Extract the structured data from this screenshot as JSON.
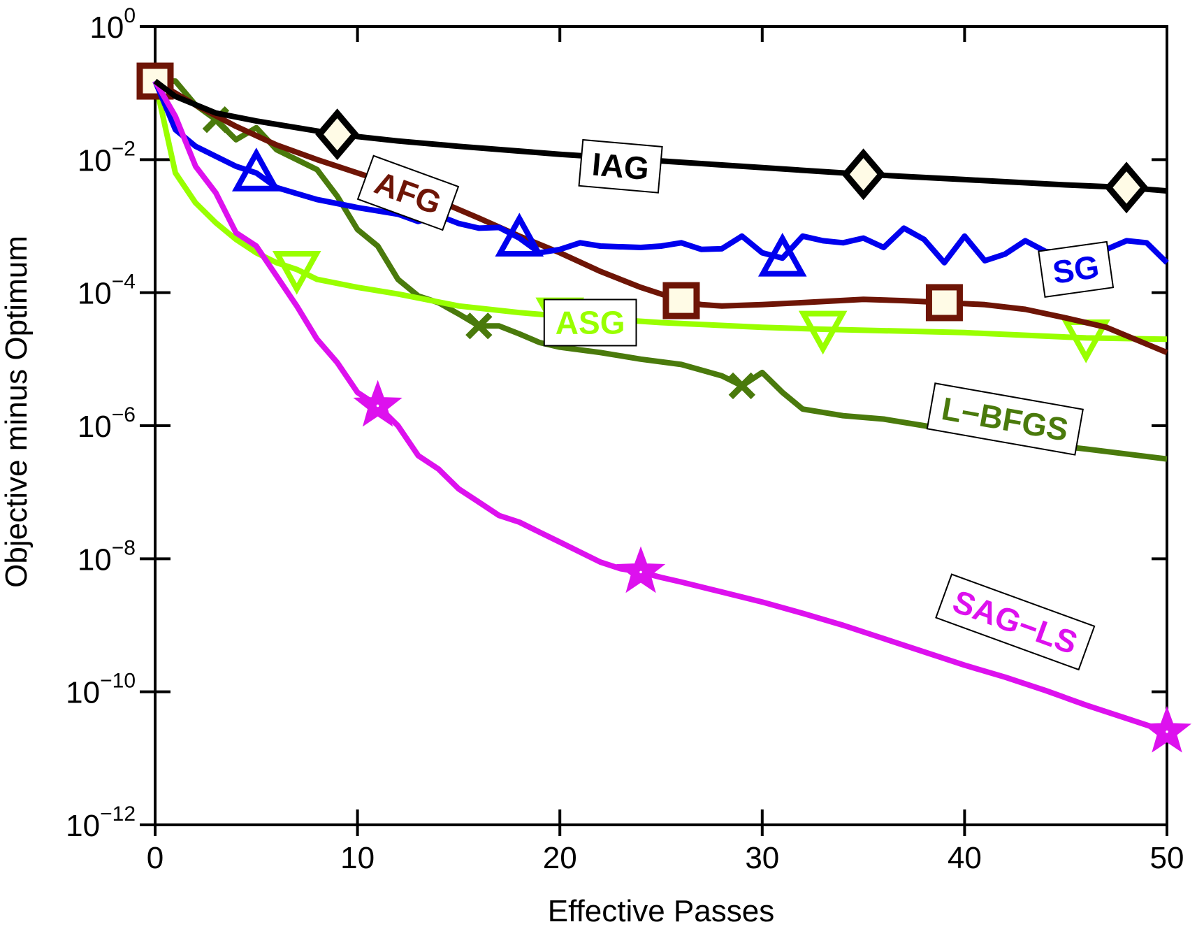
{
  "chart_data": {
    "type": "line",
    "title": "",
    "xlabel": "Effective Passes",
    "ylabel": "Objective minus Optimum",
    "xlim": [
      0,
      50
    ],
    "ylim_log10": [
      -12,
      0
    ],
    "y_scale": "log",
    "grid": false,
    "x_ticks": [
      0,
      10,
      20,
      30,
      40,
      50
    ],
    "x_tick_labels": [
      "0",
      "10",
      "20",
      "30",
      "40",
      "50"
    ],
    "y_ticks_log10": [
      0,
      -2,
      -4,
      -6,
      -8,
      -10,
      -12
    ],
    "y_tick_labels": [
      {
        "base": "10",
        "exp": "0"
      },
      {
        "base": "10",
        "exp": "−2"
      },
      {
        "base": "10",
        "exp": "−4"
      },
      {
        "base": "10",
        "exp": "−6"
      },
      {
        "base": "10",
        "exp": "−8"
      },
      {
        "base": "10",
        "exp": "−10"
      },
      {
        "base": "10",
        "exp": "−12"
      }
    ],
    "series": [
      {
        "name": "IAG",
        "color": "#000000",
        "marker": "diamond",
        "marker_x": [
          9,
          35,
          48
        ],
        "label_at": [
          23,
          -2.1
        ],
        "label_rotation": 5,
        "label_box": true,
        "x": [
          0,
          1,
          3,
          5,
          9,
          12,
          15,
          20,
          25,
          30,
          35,
          40,
          45,
          48,
          50
        ],
        "log_y": [
          -0.82,
          -1.05,
          -1.3,
          -1.42,
          -1.62,
          -1.72,
          -1.8,
          -1.92,
          -2.02,
          -2.12,
          -2.22,
          -2.3,
          -2.38,
          -2.42,
          -2.47
        ]
      },
      {
        "name": "SG",
        "color": "#0000ee",
        "marker": "triangle-up",
        "marker_x": [
          5,
          18,
          31
        ],
        "label_at": [
          45.5,
          -3.65
        ],
        "label_rotation": -8,
        "label_box": true,
        "x": [
          0,
          1,
          2,
          4,
          5,
          6,
          8,
          10,
          12,
          13,
          14,
          15,
          16,
          17,
          18,
          19,
          20,
          21,
          22,
          24,
          25,
          26,
          27,
          28,
          29,
          30,
          31,
          32,
          33,
          34,
          35,
          36,
          37,
          38,
          39,
          40,
          41,
          42,
          43,
          44,
          45,
          46,
          47,
          48,
          49,
          50
        ],
        "log_y": [
          -0.82,
          -1.55,
          -1.8,
          -2.1,
          -2.2,
          -2.42,
          -2.6,
          -2.72,
          -2.82,
          -2.93,
          -2.84,
          -2.96,
          -3.03,
          -3.02,
          -3.18,
          -3.4,
          -3.35,
          -3.25,
          -3.3,
          -3.32,
          -3.3,
          -3.25,
          -3.35,
          -3.34,
          -3.15,
          -3.4,
          -3.48,
          -3.15,
          -3.22,
          -3.25,
          -3.18,
          -3.32,
          -3.03,
          -3.2,
          -3.55,
          -3.15,
          -3.52,
          -3.42,
          -3.22,
          -3.38,
          -3.4,
          -3.42,
          -3.35,
          -3.22,
          -3.25,
          -3.55
        ]
      },
      {
        "name": "AFG",
        "color": "#6e1506",
        "marker": "square",
        "marker_x": [
          0,
          26,
          39
        ],
        "label_at": [
          12.5,
          -2.5
        ],
        "label_rotation": 20,
        "label_box": true,
        "x": [
          0,
          2,
          4,
          6,
          8,
          10,
          12,
          14,
          16,
          18,
          20,
          22,
          24,
          25,
          26,
          27,
          28,
          30,
          32,
          35,
          37,
          39,
          41,
          43,
          45,
          47,
          50
        ],
        "log_y": [
          -0.82,
          -1.18,
          -1.5,
          -1.78,
          -2.0,
          -2.2,
          -2.4,
          -2.62,
          -2.88,
          -3.15,
          -3.4,
          -3.68,
          -3.92,
          -4.02,
          -4.12,
          -4.18,
          -4.2,
          -4.18,
          -4.15,
          -4.1,
          -4.12,
          -4.15,
          -4.18,
          -4.25,
          -4.38,
          -4.52,
          -4.9
        ]
      },
      {
        "name": "ASG",
        "color": "#99ff00",
        "marker": "triangle-down",
        "marker_x": [
          7,
          20,
          33,
          46
        ],
        "label_at": [
          21.5,
          -4.45
        ],
        "label_rotation": 0,
        "label_box": true,
        "x": [
          0,
          1,
          2,
          3,
          4,
          5,
          6,
          7,
          8,
          10,
          12,
          15,
          18,
          20,
          25,
          30,
          33,
          40,
          46,
          50
        ],
        "log_y": [
          -0.82,
          -2.2,
          -2.65,
          -2.95,
          -3.2,
          -3.4,
          -3.55,
          -3.65,
          -3.8,
          -3.92,
          -4.02,
          -4.2,
          -4.3,
          -4.35,
          -4.45,
          -4.52,
          -4.55,
          -4.6,
          -4.68,
          -4.7
        ]
      },
      {
        "name": "L−BFGS",
        "color": "#4a7a0c",
        "marker": "x",
        "marker_x": [
          3,
          16,
          29
        ],
        "label_at": [
          42,
          -5.9
        ],
        "label_rotation": 10,
        "label_box": true,
        "x": [
          0,
          1,
          2,
          3,
          4,
          5,
          6,
          8,
          9,
          10,
          11,
          12,
          13,
          14,
          15,
          16,
          17,
          18,
          19,
          20,
          22,
          24,
          26,
          28,
          29,
          30,
          31,
          32,
          34,
          36,
          38,
          40,
          43,
          46,
          50
        ],
        "log_y": [
          -0.82,
          -0.82,
          -1.18,
          -1.4,
          -1.7,
          -1.52,
          -1.85,
          -2.15,
          -2.55,
          -3.05,
          -3.3,
          -3.8,
          -4.05,
          -4.15,
          -4.32,
          -4.5,
          -4.5,
          -4.62,
          -4.75,
          -4.82,
          -4.9,
          -5.0,
          -5.08,
          -5.25,
          -5.4,
          -5.2,
          -5.5,
          -5.75,
          -5.85,
          -5.9,
          -6.0,
          -6.1,
          -6.25,
          -6.35,
          -6.5
        ]
      },
      {
        "name": "SAG−LS",
        "color": "#dd11ee",
        "marker": "star",
        "marker_x": [
          11,
          24,
          50
        ],
        "label_at": [
          42.5,
          -8.95
        ],
        "label_rotation": 20,
        "label_box": true,
        "x": [
          0,
          1,
          2,
          3,
          4,
          5,
          6,
          7,
          8,
          9,
          10,
          11,
          12,
          13,
          14,
          15,
          16,
          17,
          18,
          19,
          20,
          21,
          22,
          23,
          24,
          25,
          26,
          28,
          30,
          32,
          34,
          36,
          38,
          40,
          42,
          44,
          46,
          48,
          50
        ],
        "log_y": [
          -0.82,
          -1.35,
          -2.1,
          -2.5,
          -3.1,
          -3.3,
          -3.75,
          -4.2,
          -4.7,
          -5.05,
          -5.5,
          -5.7,
          -6.0,
          -6.45,
          -6.65,
          -6.95,
          -7.15,
          -7.35,
          -7.45,
          -7.6,
          -7.75,
          -7.9,
          -8.05,
          -8.15,
          -8.2,
          -8.28,
          -8.35,
          -8.5,
          -8.65,
          -8.82,
          -9.0,
          -9.2,
          -9.4,
          -9.6,
          -9.78,
          -9.98,
          -10.2,
          -10.4,
          -10.6
        ]
      }
    ]
  }
}
